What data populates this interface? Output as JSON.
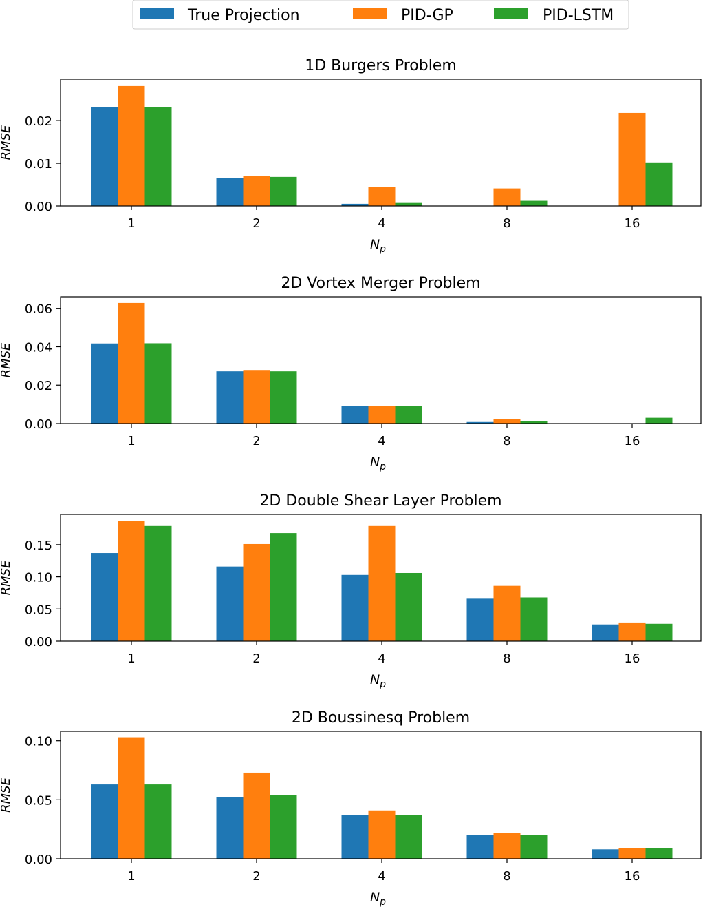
{
  "legend": {
    "placement": "top-center",
    "entries": [
      {
        "name": "True Projection",
        "color": "#1f77b4"
      },
      {
        "name": "PID-GP",
        "color": "#ff7f0e"
      },
      {
        "name": "PID-LSTM",
        "color": "#2ca02c"
      }
    ]
  },
  "chart_data": [
    {
      "type": "bar",
      "title": "1D Burgers Problem",
      "xlabel": "N",
      "xlabel_sub": "p",
      "ylabel": "RMSE",
      "categories": [
        "1",
        "2",
        "4",
        "8",
        "16"
      ],
      "ylim": [
        0,
        0.0297
      ],
      "yticks": [
        0.0,
        0.01,
        0.02
      ],
      "ytick_labels": [
        "0.00",
        "0.01",
        "0.02"
      ],
      "series": [
        {
          "name": "True Projection",
          "values": [
            0.0231,
            0.0065,
            0.0005,
            0.0,
            0.0
          ]
        },
        {
          "name": "PID-GP",
          "values": [
            0.0281,
            0.007,
            0.0044,
            0.0041,
            0.0218
          ]
        },
        {
          "name": "PID-LSTM",
          "values": [
            0.0232,
            0.0068,
            0.0007,
            0.0012,
            0.0102
          ]
        }
      ]
    },
    {
      "type": "bar",
      "title": "2D Vortex Merger Problem",
      "xlabel": "N",
      "xlabel_sub": "p",
      "ylabel": "RMSE",
      "categories": [
        "1",
        "2",
        "4",
        "8",
        "16"
      ],
      "ylim": [
        0,
        0.066
      ],
      "yticks": [
        0.0,
        0.02,
        0.04,
        0.06
      ],
      "ytick_labels": [
        "0.00",
        "0.02",
        "0.04",
        "0.06"
      ],
      "series": [
        {
          "name": "True Projection",
          "values": [
            0.0417,
            0.0272,
            0.009,
            0.0008,
            0.0
          ]
        },
        {
          "name": "PID-GP",
          "values": [
            0.0628,
            0.0279,
            0.0092,
            0.0022,
            0.0
          ]
        },
        {
          "name": "PID-LSTM",
          "values": [
            0.0418,
            0.0272,
            0.009,
            0.0012,
            0.003
          ]
        }
      ]
    },
    {
      "type": "bar",
      "title": "2D Double Shear Layer Problem",
      "xlabel": "N",
      "xlabel_sub": "p",
      "ylabel": "RMSE",
      "categories": [
        "1",
        "2",
        "4",
        "8",
        "16"
      ],
      "ylim": [
        0,
        0.197
      ],
      "yticks": [
        0.0,
        0.05,
        0.1,
        0.15
      ],
      "ytick_labels": [
        "0.00",
        "0.05",
        "0.10",
        "0.15"
      ],
      "series": [
        {
          "name": "True Projection",
          "values": [
            0.137,
            0.116,
            0.103,
            0.066,
            0.026
          ]
        },
        {
          "name": "PID-GP",
          "values": [
            0.187,
            0.151,
            0.179,
            0.086,
            0.029
          ]
        },
        {
          "name": "PID-LSTM",
          "values": [
            0.179,
            0.168,
            0.106,
            0.068,
            0.027
          ]
        }
      ]
    },
    {
      "type": "bar",
      "title": "2D Boussinesq Problem",
      "xlabel": "N",
      "xlabel_sub": "p",
      "ylabel": "RMSE",
      "categories": [
        "1",
        "2",
        "4",
        "8",
        "16"
      ],
      "ylim": [
        0,
        0.108
      ],
      "yticks": [
        0.0,
        0.05,
        0.1
      ],
      "ytick_labels": [
        "0.00",
        "0.05",
        "0.10"
      ],
      "series": [
        {
          "name": "True Projection",
          "values": [
            0.063,
            0.052,
            0.037,
            0.02,
            0.008
          ]
        },
        {
          "name": "PID-GP",
          "values": [
            0.103,
            0.073,
            0.041,
            0.022,
            0.009
          ]
        },
        {
          "name": "PID-LSTM",
          "values": [
            0.063,
            0.054,
            0.037,
            0.02,
            0.009
          ]
        }
      ]
    }
  ]
}
